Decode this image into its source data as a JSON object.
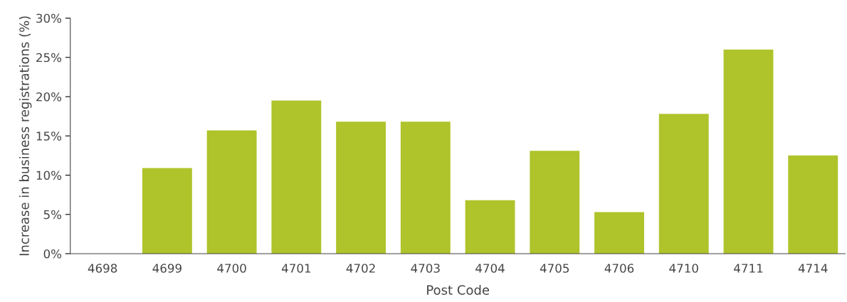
{
  "chart_data": {
    "type": "bar",
    "xlabel": "Post Code",
    "ylabel": "Increase in business registrations (%)",
    "categories": [
      "4698",
      "4699",
      "4700",
      "4701",
      "4702",
      "4703",
      "4704",
      "4705",
      "4706",
      "4710",
      "4711",
      "4714"
    ],
    "values": [
      0,
      10.9,
      15.7,
      19.5,
      16.8,
      16.8,
      6.8,
      13.1,
      5.3,
      17.8,
      26.0,
      12.5
    ],
    "color": "#afc32a",
    "ylim": [
      0,
      30
    ],
    "yticks": [
      {
        "value": 0,
        "label": "0%"
      },
      {
        "value": 5,
        "label": "5%"
      },
      {
        "value": 10,
        "label": "10%"
      },
      {
        "value": 15,
        "label": "15%"
      },
      {
        "value": 20,
        "label": "20%"
      },
      {
        "value": 25,
        "label": "25%"
      },
      {
        "value": 30,
        "label": "30%"
      }
    ],
    "grid": false,
    "legend": false
  }
}
